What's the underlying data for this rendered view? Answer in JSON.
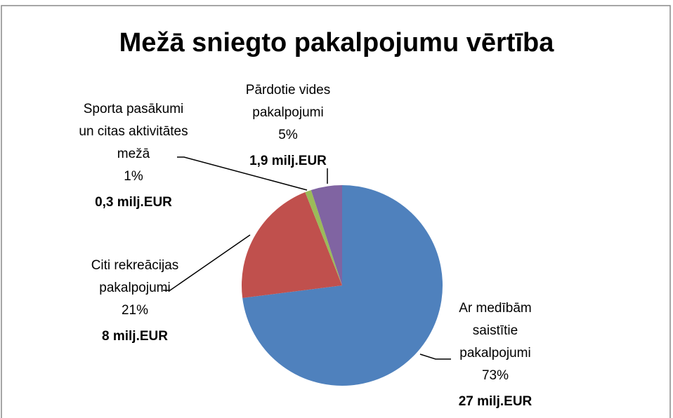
{
  "chart_data": {
    "type": "pie",
    "title": "Mežā sniegto pakalpojumu vērtība",
    "categories": [
      "Ar medībām saistītie pakalpojumi",
      "Citi rekreācijas pakalpojumi",
      "Sporta pasākumi un citas aktivitātes mežā",
      "Pārdotie vides pakalpojumi"
    ],
    "values": [
      73,
      21,
      1,
      5
    ],
    "value_labels": [
      "73%",
      "21%",
      "1%",
      "5%"
    ],
    "amount_labels": [
      "27 milj.EUR",
      "8 milj.EUR",
      "0,3 milj.EUR",
      "1,9 milj.EUR"
    ],
    "colors": [
      "#4f81bd",
      "#c0504d",
      "#9bbb59",
      "#8064a2"
    ]
  }
}
